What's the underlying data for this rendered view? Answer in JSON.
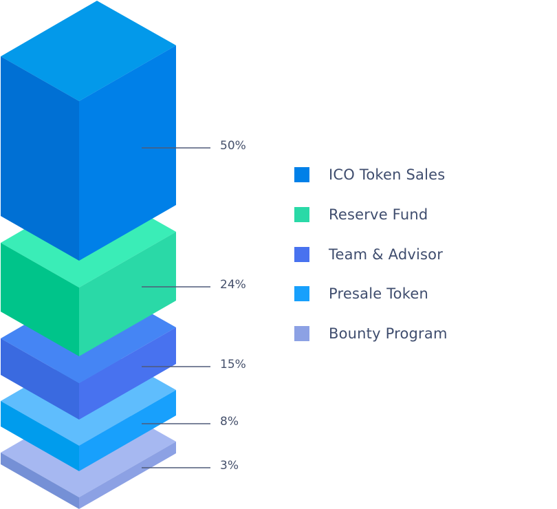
{
  "chart_data": {
    "type": "isometric-stacked-blocks",
    "title": "",
    "legend_position": "right",
    "series": [
      {
        "name": "ICO Token Sales",
        "value": 50,
        "label": "50%",
        "color": "#0080e8",
        "top_color": "#0399ea",
        "left_color": "#0070d4"
      },
      {
        "name": "Reserve Fund",
        "value": 24,
        "label": "24%",
        "color": "#2ad9a7",
        "top_color": "#3aedb7",
        "left_color": "#00c48a"
      },
      {
        "name": "Team & Advisor",
        "value": 15,
        "label": "15%",
        "color": "#4872ef",
        "top_color": "#4585f4",
        "left_color": "#3a6ae0"
      },
      {
        "name": "Presale Token",
        "value": 8,
        "label": "8%",
        "color": "#18a0fc",
        "top_color": "#5fbdfd",
        "left_color": "#009ced"
      },
      {
        "name": "Bounty Program",
        "value": 3,
        "label": "3%",
        "color": "#8ca1e4",
        "top_color": "#a6b8f1",
        "left_color": "#7590d6"
      }
    ]
  }
}
